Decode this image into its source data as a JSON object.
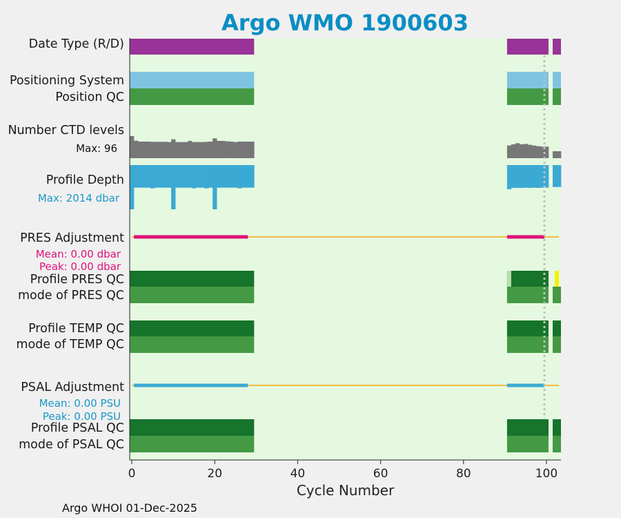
{
  "chart_data": {
    "type": "bar",
    "title": "Argo WMO 1900603",
    "xlabel": "Cycle Number",
    "xlim": [
      -0.5,
      103.5
    ],
    "xticks": [
      0,
      20,
      40,
      60,
      80,
      100
    ],
    "marker_cycle": 99.5,
    "rows": [
      {
        "id": "date-type",
        "label": "Date Type (R/D)",
        "kind": "band",
        "color": "#993399",
        "segments": [
          [
            0,
            29
          ],
          [
            91,
            100
          ],
          [
            102,
            103
          ]
        ]
      },
      {
        "id": "positioning-system",
        "label": "Positioning System",
        "kind": "band",
        "color": "#7ec4e0",
        "segments": [
          [
            0,
            29
          ],
          [
            91,
            100
          ],
          [
            102,
            103
          ]
        ]
      },
      {
        "id": "position-qc",
        "label": "Position QC",
        "kind": "band",
        "color": "#449944",
        "segments": [
          [
            0,
            29
          ],
          [
            91,
            100
          ],
          [
            102,
            103
          ]
        ]
      },
      {
        "id": "number-ctd-levels",
        "label": "Number CTD levels",
        "kind": "bars",
        "color": "#777777",
        "max_label": "Max: 96",
        "max": 96,
        "cycles": [
          0,
          1,
          2,
          3,
          4,
          5,
          6,
          7,
          8,
          9,
          10,
          11,
          12,
          13,
          14,
          15,
          16,
          17,
          18,
          19,
          20,
          21,
          22,
          23,
          24,
          25,
          26,
          27,
          28,
          29,
          91,
          92,
          93,
          94,
          95,
          96,
          97,
          98,
          99,
          100,
          102,
          103
        ],
        "values": [
          96,
          76,
          72,
          72,
          72,
          71,
          71,
          71,
          71,
          70,
          82,
          70,
          70,
          70,
          75,
          70,
          70,
          70,
          71,
          72,
          86,
          75,
          75,
          73,
          72,
          70,
          72,
          72,
          72,
          72,
          55,
          60,
          65,
          60,
          62,
          58,
          55,
          52,
          50,
          50,
          30,
          30
        ]
      },
      {
        "id": "profile-depth",
        "label": "Profile Depth",
        "kind": "depth",
        "color": "#3aaad4",
        "max_label": "Max: 2014 dbar",
        "max": 2014,
        "cycles": [
          0,
          1,
          2,
          3,
          4,
          5,
          6,
          7,
          8,
          9,
          10,
          11,
          12,
          13,
          14,
          15,
          16,
          17,
          18,
          19,
          20,
          21,
          22,
          23,
          24,
          25,
          26,
          27,
          28,
          29,
          91,
          92,
          93,
          94,
          95,
          96,
          97,
          98,
          99,
          100,
          102,
          103
        ],
        "values": [
          2014,
          1030,
          1030,
          1030,
          1030,
          1060,
          1030,
          1030,
          1030,
          1030,
          2014,
          1030,
          1030,
          1030,
          1030,
          1060,
          1030,
          1030,
          1060,
          1030,
          2014,
          1030,
          1030,
          1030,
          1030,
          1030,
          1060,
          1030,
          1030,
          1030,
          1100,
          1040,
          1040,
          1040,
          1030,
          1040,
          1030,
          1040,
          1030,
          1030,
          1000,
          1000
        ]
      },
      {
        "id": "pres-adjustment",
        "label": "PRES Adjustment",
        "kind": "adjust",
        "line_color": "#f5b942",
        "color": "#e0117a",
        "mean_label": "Mean: 0.00 dbar",
        "peak_label": "Peak: 0.00 dbar",
        "segments": [
          [
            1,
            28
          ],
          [
            91,
            99.5
          ]
        ]
      },
      {
        "id": "profile-pres-qc",
        "label": "Profile PRES QC",
        "kind": "band",
        "color": "#16742b",
        "segments": [
          [
            0,
            29
          ],
          [
            91,
            100
          ]
        ],
        "extra": [
          [
            90.5,
            91.5,
            "#b7dfb0"
          ],
          [
            102,
            103,
            "#f2f200"
          ]
        ]
      },
      {
        "id": "mode-pres-qc",
        "label": "mode of PRES QC",
        "kind": "band",
        "color": "#449944",
        "segments": [
          [
            0,
            29
          ],
          [
            91,
            100
          ],
          [
            102,
            103
          ]
        ]
      },
      {
        "id": "profile-temp-qc",
        "label": "Profile TEMP QC",
        "kind": "band",
        "color": "#16742b",
        "segments": [
          [
            0,
            29
          ],
          [
            91,
            100
          ],
          [
            102,
            103
          ]
        ]
      },
      {
        "id": "mode-temp-qc",
        "label": "mode of TEMP QC",
        "kind": "band",
        "color": "#449944",
        "segments": [
          [
            0,
            29
          ],
          [
            91,
            100
          ],
          [
            102,
            103
          ]
        ]
      },
      {
        "id": "psal-adjustment",
        "label": "PSAL Adjustment",
        "kind": "adjust",
        "line_color": "#f5b942",
        "color": "#3aaad4",
        "mean_label": "Mean: 0.00 PSU",
        "peak_label": "Peak: 0.00 PSU",
        "segments": [
          [
            1,
            28
          ],
          [
            91,
            99.5
          ]
        ]
      },
      {
        "id": "profile-psal-qc",
        "label": "Profile PSAL QC",
        "kind": "band",
        "color": "#16742b",
        "segments": [
          [
            0,
            29
          ],
          [
            91,
            100
          ],
          [
            102,
            103
          ]
        ]
      },
      {
        "id": "mode-psal-qc",
        "label": "mode of PSAL QC",
        "kind": "band",
        "color": "#449944",
        "segments": [
          [
            0,
            29
          ],
          [
            91,
            100
          ],
          [
            102,
            103
          ]
        ]
      }
    ],
    "colors": {
      "title": "#0a8ec4",
      "plot_bg": "#e5f9e0",
      "figure_bg": "#f0f0f0",
      "depth_text": "#1a98c8",
      "pres_text": "#e0117a",
      "psal_text": "#1a98c8",
      "marker": "#c0c0c0"
    }
  },
  "footer": "Argo WHOI 01-Dec-2025"
}
